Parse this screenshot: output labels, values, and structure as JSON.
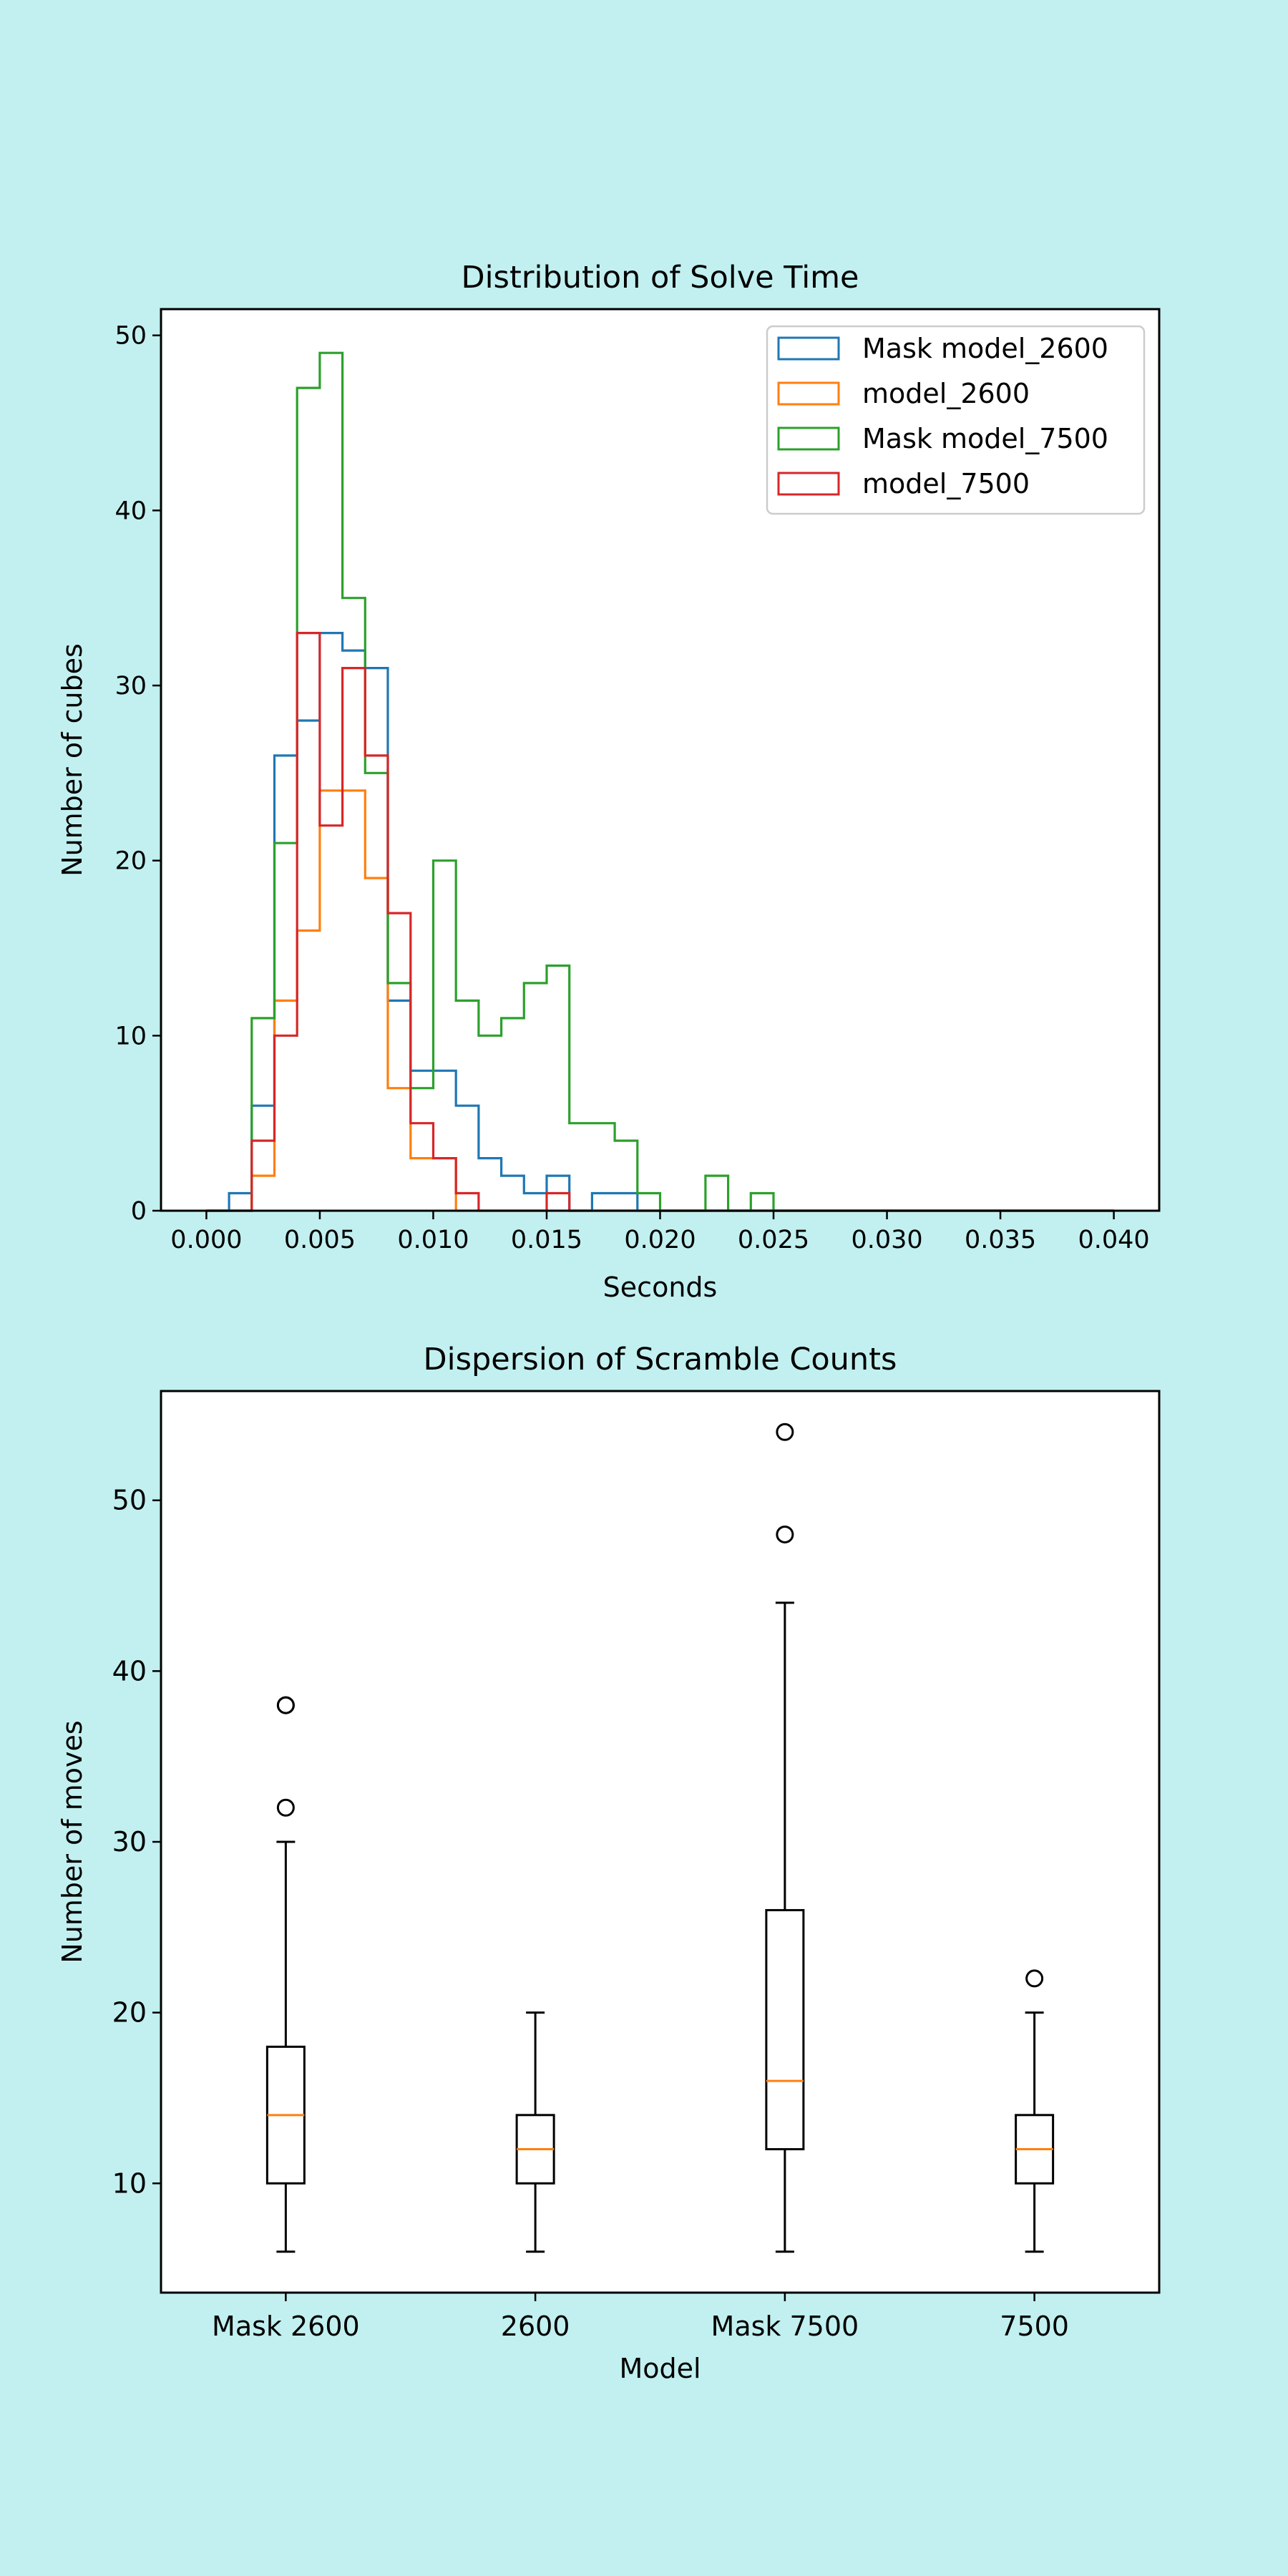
{
  "chart_data": [
    {
      "type": "histogram",
      "title": "Distribution of Solve Time",
      "xlabel": "Seconds",
      "ylabel": "Number of cubes",
      "xlim": [
        -0.002,
        0.042
      ],
      "ylim": [
        0,
        51.5
      ],
      "xticks": [
        0.0,
        0.005,
        0.01,
        0.015,
        0.02,
        0.025,
        0.03,
        0.035,
        0.04
      ],
      "xtick_labels": [
        "0.000",
        "0.005",
        "0.010",
        "0.015",
        "0.020",
        "0.025",
        "0.030",
        "0.035",
        "0.040"
      ],
      "yticks": [
        0,
        10,
        20,
        30,
        40,
        50
      ],
      "ytick_labels": [
        "0",
        "10",
        "20",
        "30",
        "40",
        "50"
      ],
      "bin_start": 0.0,
      "bin_width": 0.001,
      "legend_position": "upper right",
      "series": [
        {
          "name": "Mask model_2600",
          "color": "#1f77b4",
          "counts": [
            0,
            1,
            6,
            26,
            28,
            33,
            32,
            31,
            12,
            8,
            8,
            6,
            3,
            2,
            1,
            2,
            0,
            1,
            1,
            0,
            0,
            0,
            0,
            0,
            0,
            0,
            0,
            0,
            0,
            0,
            0,
            0,
            0,
            0,
            0,
            0,
            0,
            0,
            0,
            0
          ]
        },
        {
          "name": " model_2600",
          "color": "#ff7f0e",
          "counts": [
            0,
            0,
            2,
            12,
            16,
            24,
            24,
            19,
            7,
            3,
            3,
            0,
            0,
            0,
            0,
            0,
            0,
            0,
            0,
            0,
            0,
            0,
            0,
            0,
            0,
            0,
            0,
            0,
            0,
            0,
            0,
            0,
            0,
            0,
            0,
            0,
            0,
            0,
            0,
            0
          ]
        },
        {
          "name": "Mask model_7500",
          "color": "#2ca02c",
          "counts": [
            0,
            0,
            11,
            21,
            47,
            49,
            35,
            25,
            13,
            7,
            20,
            12,
            10,
            11,
            13,
            14,
            5,
            5,
            4,
            1,
            0,
            0,
            2,
            0,
            1,
            0,
            0,
            0,
            0,
            0,
            0,
            0,
            0,
            0,
            0,
            0,
            0,
            0,
            0,
            0
          ]
        },
        {
          "name": " model_7500",
          "color": "#d62728",
          "counts": [
            0,
            0,
            4,
            10,
            33,
            22,
            31,
            26,
            17,
            5,
            3,
            1,
            0,
            0,
            0,
            1,
            0,
            0,
            0,
            0,
            0,
            0,
            0,
            0,
            0,
            0,
            0,
            0,
            0,
            0,
            0,
            0,
            0,
            0,
            0,
            0,
            0,
            0,
            0,
            0
          ]
        }
      ]
    },
    {
      "type": "box",
      "title": "Dispersion of Scramble Counts",
      "xlabel": "Model",
      "ylabel": "Number of moves",
      "ylim": [
        3.6,
        56.4
      ],
      "yticks": [
        10,
        20,
        30,
        40,
        50
      ],
      "ytick_labels": [
        "10",
        "20",
        "30",
        "40",
        "50"
      ],
      "categories": [
        "Mask 2600",
        "2600",
        "Mask 7500",
        "7500"
      ],
      "boxes": [
        {
          "label": "Mask 2600",
          "whisker_low": 6,
          "q1": 10,
          "median": 14,
          "q3": 18,
          "whisker_high": 30,
          "outliers": [
            32,
            38,
            38
          ]
        },
        {
          "label": "2600",
          "whisker_low": 6,
          "q1": 10,
          "median": 12,
          "q3": 14,
          "whisker_high": 20,
          "outliers": []
        },
        {
          "label": "Mask 7500",
          "whisker_low": 6,
          "q1": 12,
          "median": 16,
          "q3": 26,
          "whisker_high": 44,
          "outliers": [
            48,
            54
          ]
        },
        {
          "label": "7500",
          "whisker_low": 6,
          "q1": 10,
          "median": 12,
          "q3": 14,
          "whisker_high": 20,
          "outliers": [
            22
          ]
        }
      ],
      "median_color": "#ff7f0e"
    }
  ]
}
